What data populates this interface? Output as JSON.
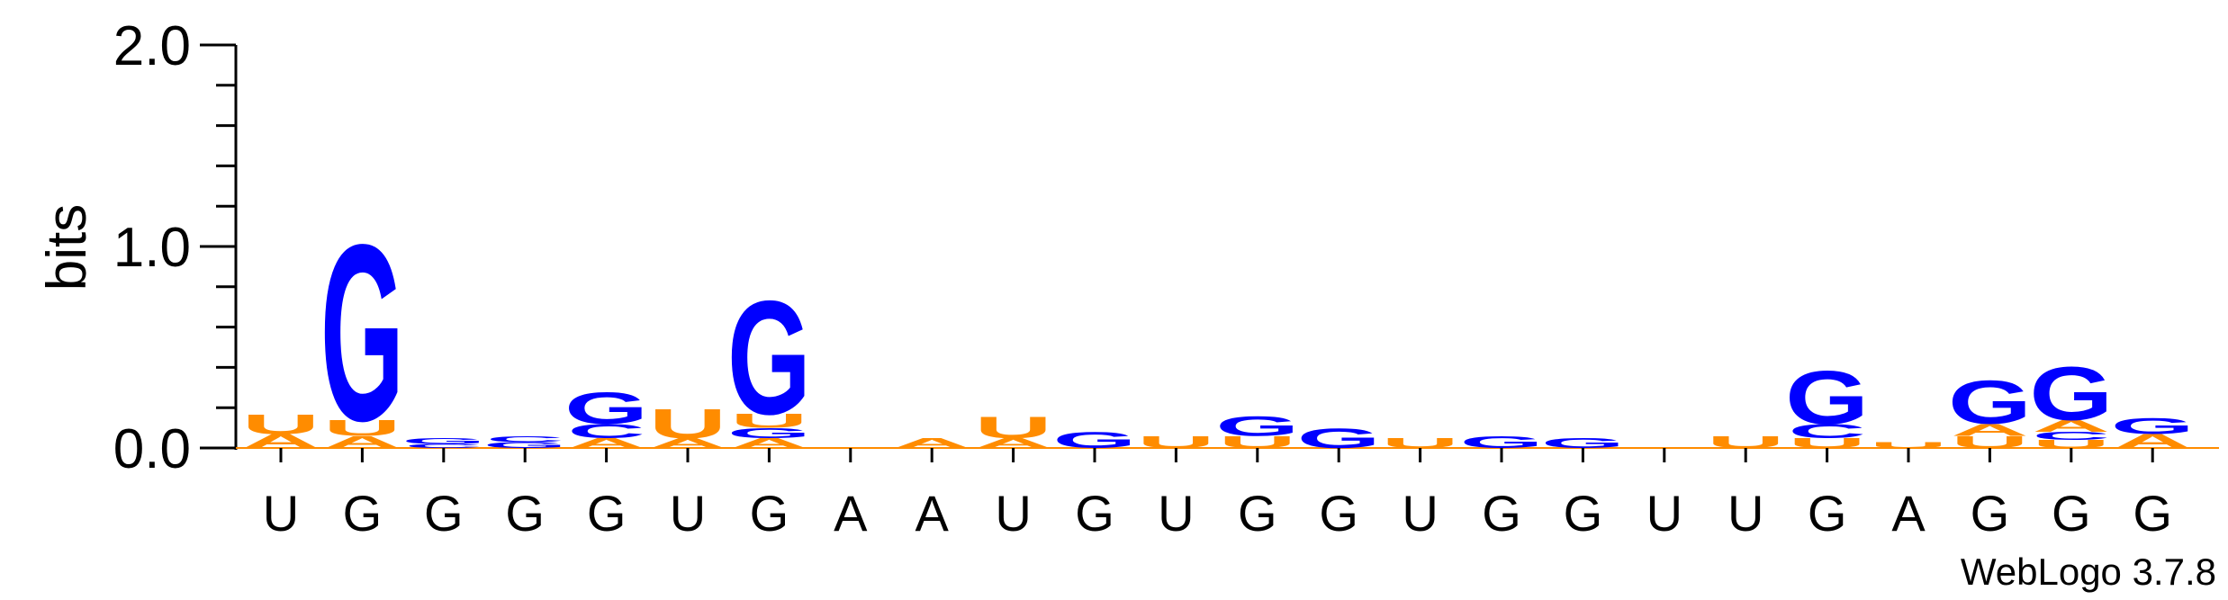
{
  "chart_data": {
    "type": "sequence-logo",
    "ylabel": "bits",
    "ylim": [
      0,
      2.0
    ],
    "yticks": [
      "0.0",
      "1.0",
      "2.0"
    ],
    "x_labels": [
      "U",
      "G",
      "G",
      "G",
      "G",
      "U",
      "G",
      "A",
      "A",
      "U",
      "G",
      "U",
      "G",
      "G",
      "U",
      "G",
      "G",
      "U",
      "U",
      "G",
      "A",
      "G",
      "G",
      "G"
    ],
    "colors": {
      "A": "#ff8c00",
      "U": "#ff8c00",
      "G": "#0000ff",
      "C": "#0000ff"
    },
    "columns": [
      [
        {
          "l": "A",
          "h": 0.07
        },
        {
          "l": "U",
          "h": 0.1
        }
      ],
      [
        {
          "l": "A",
          "h": 0.06
        },
        {
          "l": "U",
          "h": 0.08
        },
        {
          "l": "G",
          "h": 0.9
        }
      ],
      [
        {
          "l": "C",
          "h": 0.02
        },
        {
          "l": "G",
          "h": 0.03
        }
      ],
      [
        {
          "l": "G",
          "h": 0.03
        },
        {
          "l": "C",
          "h": 0.03
        }
      ],
      [
        {
          "l": "A",
          "h": 0.05
        },
        {
          "l": "C",
          "h": 0.07
        },
        {
          "l": "G",
          "h": 0.16
        }
      ],
      [
        {
          "l": "A",
          "h": 0.05
        },
        {
          "l": "U",
          "h": 0.15
        }
      ],
      [
        {
          "l": "A",
          "h": 0.05
        },
        {
          "l": "G",
          "h": 0.05
        },
        {
          "l": "U",
          "h": 0.07
        },
        {
          "l": "G",
          "h": 0.58
        }
      ],
      [],
      [
        {
          "l": "A",
          "h": 0.05
        }
      ],
      [
        {
          "l": "A",
          "h": 0.05
        },
        {
          "l": "U",
          "h": 0.11
        }
      ],
      [
        {
          "l": "G",
          "h": 0.08
        }
      ],
      [
        {
          "l": "U",
          "h": 0.06
        }
      ],
      [
        {
          "l": "U",
          "h": 0.06
        },
        {
          "l": "G",
          "h": 0.1
        }
      ],
      [
        {
          "l": "G",
          "h": 0.1
        }
      ],
      [
        {
          "l": "U",
          "h": 0.05
        }
      ],
      [
        {
          "l": "G",
          "h": 0.06
        }
      ],
      [
        {
          "l": "G",
          "h": 0.05
        }
      ],
      [],
      [
        {
          "l": "U",
          "h": 0.06
        }
      ],
      [
        {
          "l": "U",
          "h": 0.05
        },
        {
          "l": "C",
          "h": 0.07
        },
        {
          "l": "G",
          "h": 0.27
        }
      ],
      [
        {
          "l": "U",
          "h": 0.03
        }
      ],
      [
        {
          "l": "U",
          "h": 0.06
        },
        {
          "l": "A",
          "h": 0.06
        },
        {
          "l": "G",
          "h": 0.22
        }
      ],
      [
        {
          "l": "U",
          "h": 0.04
        },
        {
          "l": "C",
          "h": 0.04
        },
        {
          "l": "A",
          "h": 0.06
        },
        {
          "l": "G",
          "h": 0.27
        }
      ],
      [
        {
          "l": "A",
          "h": 0.07
        },
        {
          "l": "G",
          "h": 0.08
        }
      ]
    ]
  },
  "watermark": "WebLogo 3.7.8"
}
